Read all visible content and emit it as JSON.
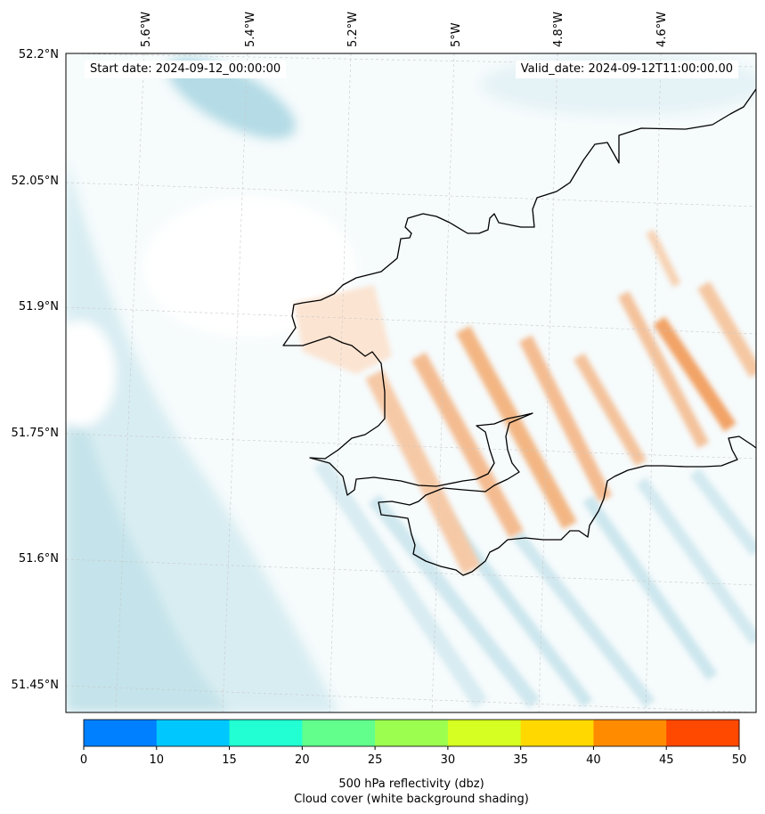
{
  "map": {
    "start_date": "Start date: 2024-09-12_00:00:00",
    "valid_date": "Valid_date: 2024-09-12T11:00:00.00",
    "lon_labels": [
      "5.6°W",
      "5.4°W",
      "5.2°W",
      "5°W",
      "4.8°W",
      "4.6°W"
    ],
    "lat_labels": [
      "52.2°N",
      "52.05°N",
      "51.9°N",
      "51.75°N",
      "51.6°N",
      "51.45°N"
    ],
    "colors": {
      "cloud_light": "#eef7f9",
      "cloud_mid": "#d2eaf0",
      "cloud_dark": "#a9d6e2",
      "reflect_light": "#fbe4d2",
      "reflect_mid": "#f6c39c",
      "reflect_dark": "#f2a366",
      "coastline": "#000000"
    }
  },
  "colorbar": {
    "ticks": [
      "0",
      "10",
      "15",
      "20",
      "25",
      "30",
      "35",
      "40",
      "45",
      "50"
    ],
    "colors": [
      "#0080ff",
      "#00c8ff",
      "#22ffd2",
      "#62ff8c",
      "#9cff50",
      "#d6ff22",
      "#ffd800",
      "#ff8c00",
      "#ff4800"
    ],
    "title_line1": "500 hPa reflectivity (dbz)",
    "title_line2": "Cloud cover (white background shading)"
  }
}
